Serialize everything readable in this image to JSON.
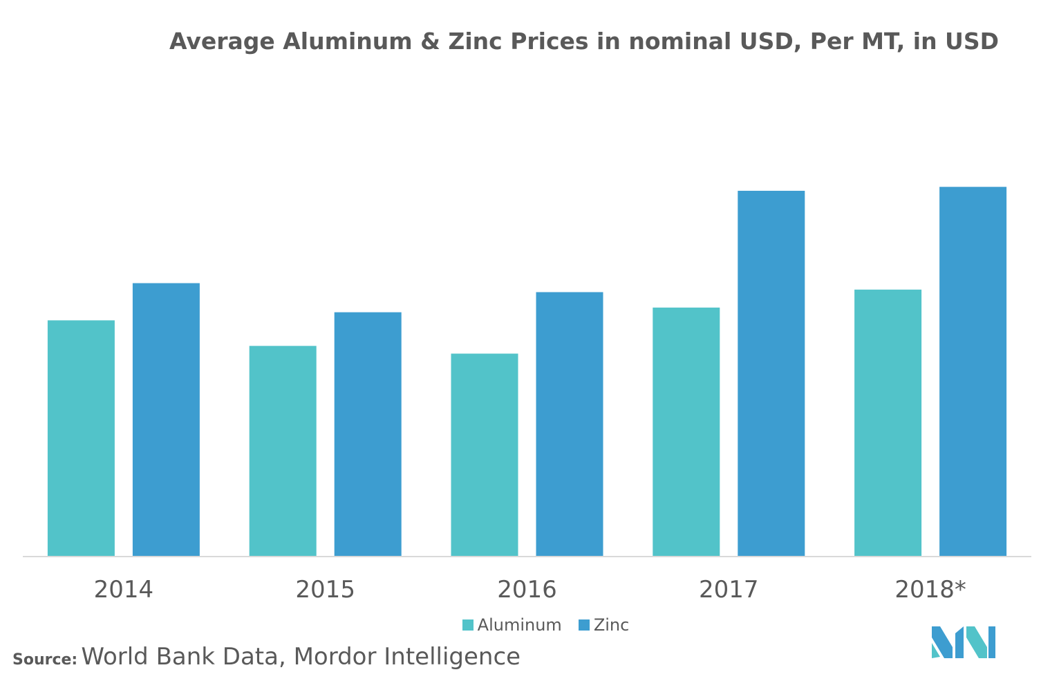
{
  "chart_data": {
    "type": "bar",
    "title": "Average Aluminum & Zinc Prices in nominal USD, Per MT, in USD",
    "categories": [
      "2014",
      "2015",
      "2016",
      "2017",
      "2018*"
    ],
    "series": [
      {
        "name": "Aluminum",
        "color": "#52c3c9",
        "values": [
          1867,
          1665,
          1604,
          1968,
          2110
        ]
      },
      {
        "name": "Zinc",
        "color": "#3d9dd0",
        "values": [
          2161,
          1931,
          2090,
          2891,
          2922
        ]
      }
    ],
    "xlabel": "",
    "ylabel": "",
    "ylim": [
      0,
      4000
    ],
    "grid": false,
    "legend_position": "bottom"
  },
  "legend": {
    "aluminum_label": "Aluminum",
    "zinc_label": "Zinc"
  },
  "source": {
    "label": "Source:",
    "text": "World Bank Data, Mordor Intelligence"
  },
  "logo": {
    "icon": "mordor-intelligence-logo-icon",
    "color_light": "#52c3c9",
    "color_dark": "#3d9dd0"
  }
}
